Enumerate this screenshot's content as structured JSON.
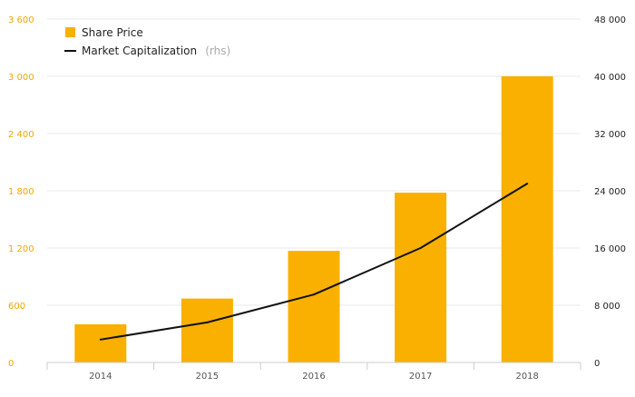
{
  "chart_data": {
    "type": "bar",
    "categories": [
      "2014",
      "2015",
      "2016",
      "2017",
      "2018"
    ],
    "series": [
      {
        "name": "Share Price",
        "type": "bar",
        "axis": "left",
        "values": [
          400,
          670,
          1170,
          1780,
          3000
        ]
      },
      {
        "name": "Market Capitalization",
        "name_suffix": "(rhs)",
        "type": "line",
        "axis": "right",
        "values": [
          3200,
          5600,
          9500,
          16000,
          25000
        ]
      }
    ],
    "ylim_left": [
      0,
      3600
    ],
    "ylim_right": [
      0,
      48000
    ],
    "left_ticks": [
      "0",
      "600",
      "1 200",
      "1 800",
      "2 400",
      "3 000",
      "3 600"
    ],
    "left_tick_values": [
      0,
      600,
      1200,
      1800,
      2400,
      3000,
      3600
    ],
    "right_ticks": [
      "0",
      "8 000",
      "16 000",
      "24 000",
      "32 000",
      "40 000",
      "48 000"
    ],
    "right_tick_values": [
      0,
      8000,
      16000,
      24000,
      32000,
      40000,
      48000
    ],
    "legend_position": "top-left",
    "grid": true,
    "colors": {
      "bar": "#F9B000",
      "line": "#111111",
      "left_axis_text": "#F0A800",
      "grid": "#e8e8e8",
      "axis": "#cccccc"
    }
  }
}
